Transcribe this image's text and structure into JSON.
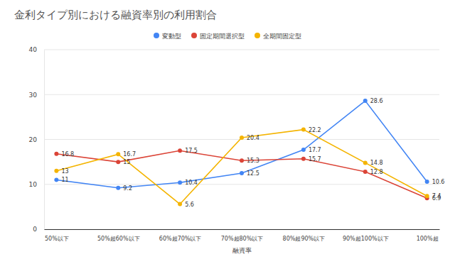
{
  "chart_data": {
    "type": "line",
    "title": "金利タイプ別における融資率別の利用割合",
    "x_label": "融資率",
    "categories": [
      "50%以下",
      "50%超60%以下",
      "60%超70%以下",
      "70%超80%以下",
      "80%超90%以下",
      "90%超100%以下",
      "100%超"
    ],
    "series": [
      {
        "name": "変動型",
        "color": "#4285f4",
        "marker": "circle",
        "values": [
          11,
          9.2,
          10.4,
          12.5,
          17.7,
          28.6,
          10.6
        ]
      },
      {
        "name": "固定期間選択型",
        "color": "#db4437",
        "marker": "circle",
        "values": [
          16.8,
          15,
          17.5,
          15.3,
          15.7,
          12.8,
          6.9
        ]
      },
      {
        "name": "全期間固定型",
        "color": "#f4b400",
        "marker": "circle",
        "values": [
          13,
          16.7,
          5.6,
          20.4,
          22.2,
          14.8,
          7.4
        ]
      }
    ],
    "ylim": [
      0,
      40
    ],
    "yticks": [
      0,
      10,
      20,
      30,
      40
    ],
    "grid": true,
    "legend": "top",
    "data_labels": true
  }
}
